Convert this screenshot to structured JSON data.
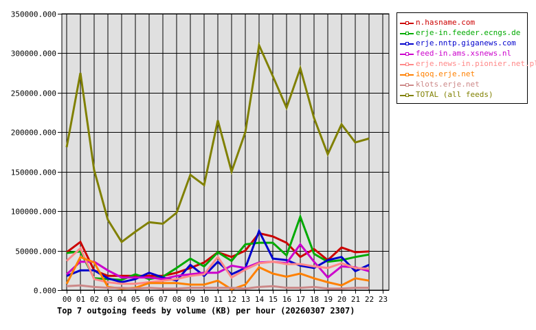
{
  "chart_data": {
    "type": "line",
    "title": "Top 7 outgoing feeds by volume (KB) per hour (20260307 2307)",
    "xlabel": "",
    "ylabel": "",
    "ylim": [
      0,
      350000
    ],
    "grid": true,
    "legend_position": "right",
    "categories": [
      "00",
      "01",
      "02",
      "03",
      "04",
      "05",
      "06",
      "07",
      "08",
      "09",
      "10",
      "11",
      "12",
      "13",
      "14",
      "15",
      "16",
      "17",
      "18",
      "19",
      "20",
      "21",
      "22",
      "23"
    ],
    "y_ticks": [
      "0.000",
      "50000.000",
      "100000.000",
      "150000.000",
      "200000.000",
      "250000.000",
      "300000.000",
      "350000.000"
    ],
    "series": [
      {
        "name": "n.hasname.com",
        "color": "#cc0000",
        "values": [
          48000,
          61000,
          25000,
          18000,
          18000,
          18000,
          18000,
          18000,
          22000,
          28000,
          35000,
          48000,
          42000,
          50000,
          72000,
          68000,
          60000,
          42000,
          52000,
          38000,
          54000,
          48000,
          49000
        ]
      },
      {
        "name": "erje-in.feeder.ecngs.de",
        "color": "#00aa00",
        "values": [
          47000,
          49000,
          15000,
          14000,
          13000,
          20000,
          14000,
          17000,
          28000,
          40000,
          30000,
          48000,
          37000,
          58000,
          60000,
          60000,
          44000,
          93000,
          46000,
          36000,
          38000,
          42000,
          45000
        ]
      },
      {
        "name": "erje.nntp.giganews.com",
        "color": "#0000cc",
        "values": [
          18000,
          25000,
          25000,
          15000,
          10000,
          14000,
          22000,
          16000,
          12000,
          32000,
          18000,
          36000,
          20000,
          28000,
          75000,
          40000,
          38000,
          31000,
          28000,
          38000,
          42000,
          24000,
          32000
        ]
      },
      {
        "name": "feed-in.ams.xsnews.nl",
        "color": "#cc00cc",
        "values": [
          20000,
          36000,
          36000,
          25000,
          16000,
          16000,
          16000,
          14000,
          18000,
          20000,
          22000,
          22000,
          31000,
          28000,
          35000,
          36000,
          34000,
          58000,
          36000,
          16000,
          30000,
          29000,
          24000
        ]
      },
      {
        "name": "erje.news-in.pionier.net.pl",
        "color": "#ff8888",
        "values": [
          37000,
          53000,
          14000,
          10000,
          8000,
          8000,
          10000,
          12000,
          14000,
          18000,
          20000,
          42000,
          16000,
          26000,
          34000,
          36000,
          33000,
          33000,
          30000,
          28000,
          34000,
          28000,
          27000
        ]
      },
      {
        "name": "iqoq.erje.net",
        "color": "#ff8000",
        "values": [
          8000,
          42000,
          35000,
          4000,
          2000,
          3000,
          9000,
          9000,
          9000,
          7000,
          7000,
          12000,
          1000,
          7000,
          29000,
          21000,
          17000,
          21000,
          15000,
          10000,
          6000,
          15000,
          12000
        ]
      },
      {
        "name": "klots.erje.net",
        "color": "#cc8888",
        "values": [
          5000,
          6000,
          4000,
          3000,
          3000,
          2000,
          3000,
          2000,
          2000,
          3000,
          3000,
          3000,
          3000,
          2000,
          4000,
          5000,
          3000,
          3000,
          4000,
          2000,
          2000,
          3000,
          3000
        ]
      },
      {
        "name": "TOTAL (all feeds)",
        "color": "#808000",
        "values": [
          181000,
          275000,
          152000,
          89000,
          61000,
          74000,
          86000,
          84000,
          98000,
          146000,
          133000,
          215000,
          150000,
          200000,
          310000,
          271000,
          231000,
          281000,
          218000,
          172000,
          210000,
          187000,
          192000
        ]
      }
    ]
  },
  "legend": {
    "items": [
      {
        "label": "n.hasname.com",
        "color": "#cc0000"
      },
      {
        "label": "erje-in.feeder.ecngs.de",
        "color": "#00aa00"
      },
      {
        "label": "erje.nntp.giganews.com",
        "color": "#0000cc"
      },
      {
        "label": "feed-in.ams.xsnews.nl",
        "color": "#cc00cc"
      },
      {
        "label": "erje.news-in.pionier.net.pl",
        "color": "#ff8888"
      },
      {
        "label": "iqoq.erje.net",
        "color": "#ff8000"
      },
      {
        "label": "klots.erje.net",
        "color": "#cc8888"
      },
      {
        "label": "TOTAL (all feeds)",
        "color": "#808000"
      }
    ]
  },
  "caption": "Top 7 outgoing feeds by volume (KB) per hour (20260307 2307)",
  "style": {
    "plot_bg": "#e0e0e0",
    "grid_color": "#000000"
  }
}
